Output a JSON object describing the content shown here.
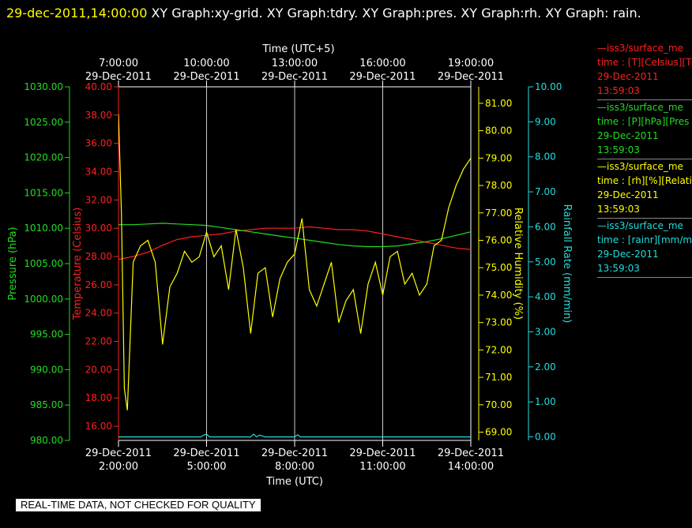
{
  "header": {
    "timestamp": "29-dec-2011,14:00:00",
    "graphs": "XY Graph:xy-grid.  XY Graph:tdry.  XY Graph:pres.  XY Graph:rh.  XY Graph: rain."
  },
  "legend": [
    {
      "series": "iss3/surface_me",
      "desc": "time : [T][Celsius][T",
      "date": "29-Dec-2011",
      "time": "13:59:03",
      "color": "#ff2020"
    },
    {
      "series": "iss3/surface_me",
      "desc": "time : [P][hPa][Pres",
      "date": "29-Dec-2011",
      "time": "13:59:03",
      "color": "#22dd22"
    },
    {
      "series": "iss3/surface_me",
      "desc": "time : [rh][%][Relati",
      "date": "29-Dec-2011",
      "time": "13:59:03",
      "color": "#ffff00"
    },
    {
      "series": "iss3/surface_me",
      "desc": "time : [rainr][mm/mi",
      "date": "29-Dec-2011",
      "time": "13:59:03",
      "color": "#22dddd"
    }
  ],
  "footer_note": "REAL-TIME DATA, NOT CHECKED FOR QUALITY",
  "chart_data": {
    "type": "line",
    "xlabel": "Time (UTC)",
    "x2label": "Time (UTC+5)",
    "x_range": [
      "2:00",
      "14:00"
    ],
    "grid": "vertical lines at 5:00, 8:00, 11:00",
    "x_ticks_bottom": [
      {
        "date": "29-Dec-2011",
        "time": "2:00:00"
      },
      {
        "date": "29-Dec-2011",
        "time": "5:00:00"
      },
      {
        "date": "29-Dec-2011",
        "time": "8:00:00"
      },
      {
        "date": "29-Dec-2011",
        "time": "11:00:00"
      },
      {
        "date": "29-Dec-2011",
        "time": "14:00:00"
      }
    ],
    "x_ticks_top": [
      {
        "date": "29-Dec-2011",
        "time": "7:00:00"
      },
      {
        "date": "29-Dec-2011",
        "time": "10:00:00"
      },
      {
        "date": "29-Dec-2011",
        "time": "13:00:00"
      },
      {
        "date": "29-Dec-2011",
        "time": "16:00:00"
      },
      {
        "date": "29-Dec-2011",
        "time": "19:00:00"
      }
    ],
    "axes": {
      "pressure": {
        "label": "Pressure (hPa)",
        "color": "#22dd22",
        "range": [
          980,
          1030
        ],
        "ticks": [
          "980.00",
          "985.00",
          "990.00",
          "995.00",
          "1000.00",
          "1005.00",
          "1010.00",
          "1015.00",
          "1020.00",
          "1025.00",
          "1030.00"
        ]
      },
      "temperature": {
        "label": "Temperature (Celsius)",
        "color": "#ff2020",
        "range": [
          15,
          40
        ],
        "ticks": [
          "16.00",
          "18.00",
          "20.00",
          "22.00",
          "24.00",
          "26.00",
          "28.00",
          "30.00",
          "32.00",
          "34.00",
          "36.00",
          "38.00",
          "40.00"
        ]
      },
      "rh": {
        "label": "Relative Humidity (%)",
        "color": "#ffff00",
        "range": [
          68.7,
          81.6
        ],
        "ticks": [
          "69.00",
          "70.00",
          "71.00",
          "72.00",
          "73.00",
          "74.00",
          "75.00",
          "76.00",
          "77.00",
          "78.00",
          "79.00",
          "80.00",
          "81.00"
        ]
      },
      "rain": {
        "label": "Rainfall Rate (mm/min)",
        "color": "#22dddd",
        "range": [
          -0.1,
          10
        ],
        "ticks": [
          "0.00",
          "1.00",
          "2.00",
          "3.00",
          "4.00",
          "5.00",
          "6.00",
          "7.00",
          "8.00",
          "9.00",
          "10.00"
        ]
      }
    },
    "series": [
      {
        "axis": "temperature",
        "x": [
          2.0,
          2.5,
          3.0,
          3.5,
          4.0,
          4.5,
          5.0,
          5.5,
          6.0,
          6.5,
          7.0,
          7.5,
          8.0,
          8.5,
          9.0,
          9.5,
          10.0,
          10.5,
          11.0,
          11.5,
          12.0,
          12.5,
          13.0,
          13.5,
          14.0
        ],
        "y": [
          27.8,
          28.0,
          28.3,
          28.8,
          29.2,
          29.4,
          29.5,
          29.6,
          29.8,
          29.9,
          30.0,
          30.0,
          30.0,
          30.1,
          30.0,
          29.9,
          29.9,
          29.8,
          29.6,
          29.4,
          29.2,
          29.0,
          28.8,
          28.6,
          28.5
        ]
      },
      {
        "axis": "pressure",
        "x": [
          2.0,
          2.5,
          3.0,
          3.5,
          4.0,
          4.5,
          5.0,
          5.5,
          6.0,
          6.5,
          7.0,
          7.5,
          8.0,
          8.5,
          9.0,
          9.5,
          10.0,
          10.5,
          11.0,
          11.5,
          12.0,
          12.5,
          13.0,
          13.5,
          14.0
        ],
        "y": [
          1010.5,
          1010.5,
          1010.6,
          1010.7,
          1010.6,
          1010.5,
          1010.4,
          1010.1,
          1009.8,
          1009.5,
          1009.2,
          1008.9,
          1008.6,
          1008.3,
          1008.0,
          1007.7,
          1007.5,
          1007.4,
          1007.4,
          1007.5,
          1007.8,
          1008.1,
          1008.5,
          1009.0,
          1009.5
        ]
      },
      {
        "axis": "rh",
        "x": [
          2.0,
          2.1,
          2.2,
          2.3,
          2.5,
          2.75,
          3.0,
          3.25,
          3.5,
          3.75,
          4.0,
          4.25,
          4.5,
          4.75,
          5.0,
          5.25,
          5.5,
          5.75,
          6.0,
          6.25,
          6.5,
          6.75,
          7.0,
          7.25,
          7.5,
          7.75,
          8.0,
          8.25,
          8.5,
          8.75,
          9.0,
          9.25,
          9.5,
          9.75,
          10.0,
          10.25,
          10.5,
          10.75,
          11.0,
          11.25,
          11.5,
          11.75,
          12.0,
          12.25,
          12.5,
          12.75,
          13.0,
          13.25,
          13.5,
          13.75,
          14.0
        ],
        "y": [
          80.6,
          77.0,
          70.6,
          69.8,
          75.2,
          75.8,
          76.0,
          75.2,
          72.2,
          74.3,
          74.8,
          75.6,
          75.2,
          75.4,
          76.3,
          75.4,
          75.8,
          74.2,
          76.4,
          75.0,
          72.6,
          74.8,
          75.0,
          73.2,
          74.6,
          75.2,
          75.5,
          76.8,
          74.2,
          73.6,
          74.4,
          75.2,
          73.0,
          73.8,
          74.2,
          72.6,
          74.4,
          75.2,
          74.0,
          75.4,
          75.6,
          74.4,
          74.8,
          74.0,
          74.4,
          75.8,
          76.0,
          77.2,
          78.0,
          78.6,
          79.0
        ]
      },
      {
        "axis": "rain",
        "x": [
          2.0,
          4.7,
          4.8,
          4.9,
          5.0,
          5.1,
          6.0,
          6.5,
          6.6,
          6.7,
          6.8,
          7.0,
          8.0,
          8.1,
          8.2,
          9.0,
          10.0,
          11.0,
          12.0,
          13.0,
          14.0
        ],
        "y": [
          0,
          0,
          0,
          0.05,
          0.08,
          0,
          0,
          0,
          0.08,
          0,
          0.05,
          0,
          0,
          0.06,
          0,
          0,
          0,
          0,
          0,
          0,
          0
        ]
      }
    ]
  }
}
